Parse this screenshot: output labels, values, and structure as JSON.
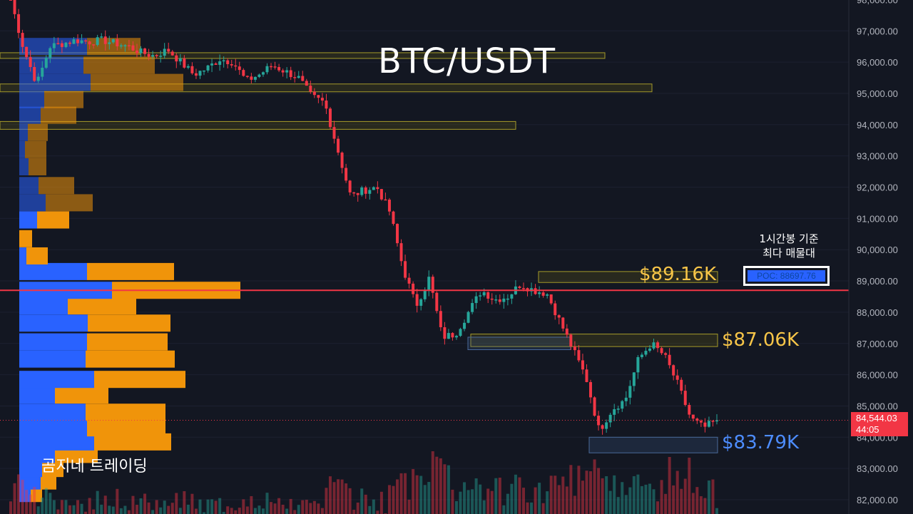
{
  "chart_data": {
    "type": "candlestick",
    "title": "BTC/USDT",
    "symbol": "BTC/USDT",
    "timeframe_note": "1시간봉 기준\n최다 매물대",
    "y_axis": {
      "range": [
        81950,
        98000
      ],
      "ticks": [
        "82,000.00",
        "83,000.00",
        "84,000.00",
        "85,000.00",
        "86,000.00",
        "87,000.00",
        "88,000.00",
        "89,000.00",
        "90,000.00",
        "91,000.00",
        "92,000.00",
        "93,000.00",
        "94,000.00",
        "95,000.00",
        "96,000.00",
        "97,000.00",
        "98,000.00"
      ],
      "tick_values": [
        82000,
        83000,
        84000,
        85000,
        86000,
        87000,
        88000,
        89000,
        90000,
        91000,
        92000,
        93000,
        94000,
        95000,
        96000,
        97000,
        98000
      ]
    },
    "close_path": [
      98000,
      96400,
      95300,
      96500,
      96600,
      96700,
      96650,
      96700,
      96600,
      96500,
      96300,
      96200,
      96400,
      96000,
      95600,
      95800,
      96100,
      96000,
      95400,
      95600,
      95900,
      95700,
      95500,
      94900,
      94700,
      93200,
      91700,
      91900,
      92000,
      91200,
      89400,
      88200,
      89100,
      87200,
      87300,
      88000,
      88700,
      88400,
      88500,
      88900,
      88700,
      88600,
      87700,
      86800,
      85900,
      84200,
      84900,
      85200,
      86500,
      87000,
      86600,
      85700,
      84600,
      84300,
      84544
    ],
    "levels": [
      {
        "label": "$89.16K",
        "value": 89160,
        "color": "#f7c548"
      },
      {
        "label": "$87.06K",
        "value": 87060,
        "color": "#f7c548"
      },
      {
        "label": "$83.79K",
        "value": 83790,
        "color": "#4d8dff"
      }
    ],
    "poc": {
      "label": "POC: 88697.76",
      "value": 88697.76
    },
    "last_price": {
      "price": "84,544.03",
      "countdown": "44:05",
      "value": 84544.03
    },
    "volume_profile": [
      {
        "price": 82200,
        "buy": 16,
        "sell": 16
      },
      {
        "price": 82600,
        "buy": 30,
        "sell": 22
      },
      {
        "price": 83000,
        "buy": 32,
        "sell": 30
      },
      {
        "price": 83450,
        "buy": 50,
        "sell": 60
      },
      {
        "price": 83850,
        "buy": 105,
        "sell": 108
      },
      {
        "price": 84300,
        "buy": 95,
        "sell": 110
      },
      {
        "price": 84800,
        "buy": 93,
        "sell": 112
      },
      {
        "price": 85350,
        "buy": 50,
        "sell": 75
      },
      {
        "price": 85850,
        "buy": 105,
        "sell": 128
      },
      {
        "price": 86500,
        "buy": 93,
        "sell": 125
      },
      {
        "price": 87050,
        "buy": 95,
        "sell": 113
      },
      {
        "price": 87650,
        "buy": 96,
        "sell": 116
      },
      {
        "price": 88200,
        "buy": 68,
        "sell": 96
      },
      {
        "price": 88700,
        "buy": 130,
        "sell": 180
      },
      {
        "price": 89300,
        "buy": 95,
        "sell": 122
      },
      {
        "price": 89800,
        "buy": 10,
        "sell": 30
      },
      {
        "price": 90350,
        "buy": 0,
        "sell": 18
      },
      {
        "price": 90950,
        "buy": 25,
        "sell": 45
      },
      {
        "price": 91500,
        "buy": 37,
        "sell": 66
      },
      {
        "price": 92050,
        "buy": 27,
        "sell": 50
      },
      {
        "price": 92650,
        "buy": 13,
        "sell": 25
      },
      {
        "price": 93200,
        "buy": 8,
        "sell": 30
      },
      {
        "price": 93750,
        "buy": 12,
        "sell": 28
      },
      {
        "price": 94300,
        "buy": 30,
        "sell": 50
      },
      {
        "price": 94800,
        "buy": 35,
        "sell": 55
      },
      {
        "price": 95350,
        "buy": 100,
        "sell": 130
      },
      {
        "price": 95900,
        "buy": 90,
        "sell": 100
      },
      {
        "price": 96500,
        "buy": 95,
        "sell": 75
      }
    ],
    "zones": [
      {
        "from": 96150,
        "to": 96300,
        "kind": "supply"
      },
      {
        "from": 95050,
        "to": 95300,
        "kind": "supply"
      },
      {
        "from": 93850,
        "to": 94100,
        "kind": "supply"
      },
      {
        "from": 88950,
        "to": 89300,
        "kind": "supply"
      },
      {
        "from": 86900,
        "to": 87300,
        "kind": "supply"
      },
      {
        "from": 86800,
        "to": 87200,
        "kind": "demand"
      },
      {
        "from": 83500,
        "to": 84000,
        "kind": "demand"
      }
    ],
    "watermark": "곰지네 트레이딩"
  },
  "colors": {
    "background": "#131722",
    "up": "#26a69a",
    "down": "#f23645",
    "buy_profile": "#2962ff",
    "sell_profile": "#f0940a",
    "poc_line": "#f23645",
    "axis_text": "#b2b5be"
  }
}
